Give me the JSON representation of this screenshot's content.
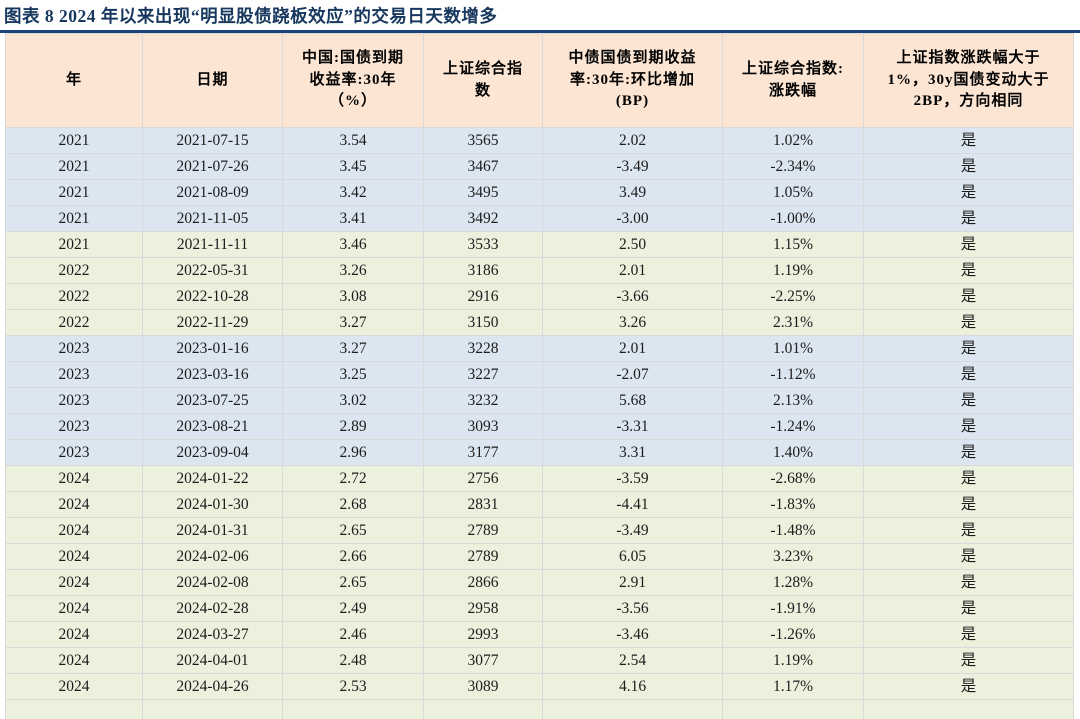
{
  "title": "图表 8  2024 年以来出现“明显股债跷板效应”的交易日天数增多",
  "colors": {
    "title_color": "#17375e",
    "rule_color": "#1c4476",
    "header_bg": "#fce5d3",
    "band_blue": "#dce6f1",
    "band_green": "#ebf1dd",
    "border_color": "#d9d9d9"
  },
  "table": {
    "headers": [
      "年",
      "日期",
      "中国:国债到期\n收益率:30年\n（%）",
      "上证综合指\n数",
      "中债国债到期收益\n率:30年:环比增加\n(BP)",
      "上证综合指数:\n涨跌幅",
      "上证指数涨跌幅大于\n1%，30y国债变动大于\n2BP，方向相同"
    ],
    "rows": [
      {
        "year": "2021",
        "date": "2021-07-15",
        "yield_30y": "3.54",
        "sse_index": "3565",
        "yield_chg_bp": "2.02",
        "sse_pct_chg": "1.02%",
        "flag": "是",
        "band": "blue"
      },
      {
        "year": "2021",
        "date": "2021-07-26",
        "yield_30y": "3.45",
        "sse_index": "3467",
        "yield_chg_bp": "-3.49",
        "sse_pct_chg": "-2.34%",
        "flag": "是",
        "band": "blue"
      },
      {
        "year": "2021",
        "date": "2021-08-09",
        "yield_30y": "3.42",
        "sse_index": "3495",
        "yield_chg_bp": "3.49",
        "sse_pct_chg": "1.05%",
        "flag": "是",
        "band": "blue"
      },
      {
        "year": "2021",
        "date": "2021-11-05",
        "yield_30y": "3.41",
        "sse_index": "3492",
        "yield_chg_bp": "-3.00",
        "sse_pct_chg": "-1.00%",
        "flag": "是",
        "band": "blue"
      },
      {
        "year": "2021",
        "date": "2021-11-11",
        "yield_30y": "3.46",
        "sse_index": "3533",
        "yield_chg_bp": "2.50",
        "sse_pct_chg": "1.15%",
        "flag": "是",
        "band": "green"
      },
      {
        "year": "2022",
        "date": "2022-05-31",
        "yield_30y": "3.26",
        "sse_index": "3186",
        "yield_chg_bp": "2.01",
        "sse_pct_chg": "1.19%",
        "flag": "是",
        "band": "green"
      },
      {
        "year": "2022",
        "date": "2022-10-28",
        "yield_30y": "3.08",
        "sse_index": "2916",
        "yield_chg_bp": "-3.66",
        "sse_pct_chg": "-2.25%",
        "flag": "是",
        "band": "green"
      },
      {
        "year": "2022",
        "date": "2022-11-29",
        "yield_30y": "3.27",
        "sse_index": "3150",
        "yield_chg_bp": "3.26",
        "sse_pct_chg": "2.31%",
        "flag": "是",
        "band": "green"
      },
      {
        "year": "2023",
        "date": "2023-01-16",
        "yield_30y": "3.27",
        "sse_index": "3228",
        "yield_chg_bp": "2.01",
        "sse_pct_chg": "1.01%",
        "flag": "是",
        "band": "blue"
      },
      {
        "year": "2023",
        "date": "2023-03-16",
        "yield_30y": "3.25",
        "sse_index": "3227",
        "yield_chg_bp": "-2.07",
        "sse_pct_chg": "-1.12%",
        "flag": "是",
        "band": "blue"
      },
      {
        "year": "2023",
        "date": "2023-07-25",
        "yield_30y": "3.02",
        "sse_index": "3232",
        "yield_chg_bp": "5.68",
        "sse_pct_chg": "2.13%",
        "flag": "是",
        "band": "blue"
      },
      {
        "year": "2023",
        "date": "2023-08-21",
        "yield_30y": "2.89",
        "sse_index": "3093",
        "yield_chg_bp": "-3.31",
        "sse_pct_chg": "-1.24%",
        "flag": "是",
        "band": "blue"
      },
      {
        "year": "2023",
        "date": "2023-09-04",
        "yield_30y": "2.96",
        "sse_index": "3177",
        "yield_chg_bp": "3.31",
        "sse_pct_chg": "1.40%",
        "flag": "是",
        "band": "blue"
      },
      {
        "year": "2024",
        "date": "2024-01-22",
        "yield_30y": "2.72",
        "sse_index": "2756",
        "yield_chg_bp": "-3.59",
        "sse_pct_chg": "-2.68%",
        "flag": "是",
        "band": "green"
      },
      {
        "year": "2024",
        "date": "2024-01-30",
        "yield_30y": "2.68",
        "sse_index": "2831",
        "yield_chg_bp": "-4.41",
        "sse_pct_chg": "-1.83%",
        "flag": "是",
        "band": "green"
      },
      {
        "year": "2024",
        "date": "2024-01-31",
        "yield_30y": "2.65",
        "sse_index": "2789",
        "yield_chg_bp": "-3.49",
        "sse_pct_chg": "-1.48%",
        "flag": "是",
        "band": "green"
      },
      {
        "year": "2024",
        "date": "2024-02-06",
        "yield_30y": "2.66",
        "sse_index": "2789",
        "yield_chg_bp": "6.05",
        "sse_pct_chg": "3.23%",
        "flag": "是",
        "band": "green"
      },
      {
        "year": "2024",
        "date": "2024-02-08",
        "yield_30y": "2.65",
        "sse_index": "2866",
        "yield_chg_bp": "2.91",
        "sse_pct_chg": "1.28%",
        "flag": "是",
        "band": "green"
      },
      {
        "year": "2024",
        "date": "2024-02-28",
        "yield_30y": "2.49",
        "sse_index": "2958",
        "yield_chg_bp": "-3.56",
        "sse_pct_chg": "-1.91%",
        "flag": "是",
        "band": "green"
      },
      {
        "year": "2024",
        "date": "2024-03-27",
        "yield_30y": "2.46",
        "sse_index": "2993",
        "yield_chg_bp": "-3.46",
        "sse_pct_chg": "-1.26%",
        "flag": "是",
        "band": "green"
      },
      {
        "year": "2024",
        "date": "2024-04-01",
        "yield_30y": "2.48",
        "sse_index": "3077",
        "yield_chg_bp": "2.54",
        "sse_pct_chg": "1.19%",
        "flag": "是",
        "band": "green"
      },
      {
        "year": "2024",
        "date": "2024-04-26",
        "yield_30y": "2.53",
        "sse_index": "3089",
        "yield_chg_bp": "4.16",
        "sse_pct_chg": "1.17%",
        "flag": "是",
        "band": "green"
      }
    ]
  }
}
